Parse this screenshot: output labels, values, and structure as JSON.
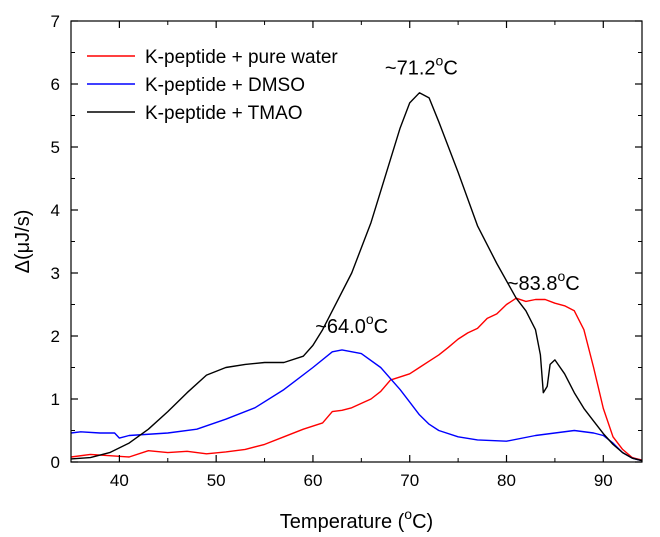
{
  "chart_data": {
    "type": "line",
    "xlabel": "Temperature (°C)",
    "xlabel_parts": {
      "pre": "Temperature (",
      "sup": "o",
      "post": "C)"
    },
    "ylabel": "Δ(μJ/s)",
    "xlim": [
      35,
      94
    ],
    "ylim": [
      0,
      7
    ],
    "xticks": [
      40,
      50,
      60,
      70,
      80,
      90
    ],
    "yticks": [
      0,
      1,
      2,
      3,
      4,
      5,
      6,
      7
    ],
    "grid": false,
    "legend_position": "top-left",
    "series": [
      {
        "name": "K-peptide + pure water",
        "color": "#ff0000",
        "points": [
          [
            35,
            0.08
          ],
          [
            37,
            0.12
          ],
          [
            39,
            0.1
          ],
          [
            41,
            0.08
          ],
          [
            43,
            0.18
          ],
          [
            45,
            0.15
          ],
          [
            47,
            0.17
          ],
          [
            49,
            0.13
          ],
          [
            51,
            0.16
          ],
          [
            53,
            0.2
          ],
          [
            55,
            0.28
          ],
          [
            57,
            0.4
          ],
          [
            59,
            0.52
          ],
          [
            61,
            0.62
          ],
          [
            62,
            0.8
          ],
          [
            63,
            0.82
          ],
          [
            64,
            0.86
          ],
          [
            65,
            0.93
          ],
          [
            66,
            1.0
          ],
          [
            67,
            1.12
          ],
          [
            68,
            1.3
          ],
          [
            69,
            1.35
          ],
          [
            70,
            1.4
          ],
          [
            71,
            1.5
          ],
          [
            72,
            1.6
          ],
          [
            73,
            1.7
          ],
          [
            74,
            1.82
          ],
          [
            75,
            1.95
          ],
          [
            76,
            2.05
          ],
          [
            77,
            2.12
          ],
          [
            78,
            2.28
          ],
          [
            79,
            2.35
          ],
          [
            80,
            2.5
          ],
          [
            81,
            2.6
          ],
          [
            82,
            2.55
          ],
          [
            83,
            2.58
          ],
          [
            84,
            2.58
          ],
          [
            85,
            2.52
          ],
          [
            86,
            2.48
          ],
          [
            87,
            2.4
          ],
          [
            88,
            2.1
          ],
          [
            89,
            1.5
          ],
          [
            90,
            0.85
          ],
          [
            91,
            0.4
          ],
          [
            92,
            0.2
          ],
          [
            93,
            0.07
          ],
          [
            94,
            0.03
          ]
        ]
      },
      {
        "name": "K-peptide + DMSO",
        "color": "#0000ff",
        "points": [
          [
            35,
            0.46
          ],
          [
            36,
            0.48
          ],
          [
            38,
            0.46
          ],
          [
            39.5,
            0.46
          ],
          [
            40,
            0.38
          ],
          [
            41,
            0.42
          ],
          [
            45,
            0.46
          ],
          [
            48,
            0.52
          ],
          [
            51,
            0.68
          ],
          [
            54,
            0.86
          ],
          [
            57,
            1.15
          ],
          [
            60,
            1.5
          ],
          [
            62,
            1.75
          ],
          [
            63,
            1.78
          ],
          [
            65,
            1.72
          ],
          [
            67,
            1.5
          ],
          [
            69,
            1.15
          ],
          [
            70,
            0.95
          ],
          [
            71,
            0.75
          ],
          [
            72,
            0.6
          ],
          [
            73,
            0.5
          ],
          [
            75,
            0.4
          ],
          [
            77,
            0.35
          ],
          [
            80,
            0.33
          ],
          [
            83,
            0.42
          ],
          [
            85,
            0.46
          ],
          [
            87,
            0.5
          ],
          [
            89,
            0.46
          ],
          [
            90,
            0.42
          ],
          [
            91,
            0.3
          ],
          [
            92,
            0.15
          ],
          [
            93,
            0.06
          ],
          [
            94,
            0.02
          ]
        ]
      },
      {
        "name": "K-peptide + TMAO",
        "color": "#000000",
        "points": [
          [
            35,
            0.05
          ],
          [
            37,
            0.07
          ],
          [
            39,
            0.15
          ],
          [
            41,
            0.3
          ],
          [
            43,
            0.52
          ],
          [
            45,
            0.8
          ],
          [
            47,
            1.1
          ],
          [
            49,
            1.38
          ],
          [
            51,
            1.5
          ],
          [
            53,
            1.55
          ],
          [
            55,
            1.58
          ],
          [
            57,
            1.58
          ],
          [
            59,
            1.68
          ],
          [
            60,
            1.85
          ],
          [
            61,
            2.1
          ],
          [
            62,
            2.4
          ],
          [
            64,
            3.0
          ],
          [
            66,
            3.8
          ],
          [
            68,
            4.8
          ],
          [
            69,
            5.3
          ],
          [
            70,
            5.7
          ],
          [
            71,
            5.86
          ],
          [
            72,
            5.78
          ],
          [
            73,
            5.4
          ],
          [
            75,
            4.6
          ],
          [
            77,
            3.75
          ],
          [
            79,
            3.15
          ],
          [
            81,
            2.6
          ],
          [
            82,
            2.4
          ],
          [
            83,
            2.1
          ],
          [
            83.5,
            1.7
          ],
          [
            83.8,
            1.1
          ],
          [
            84.2,
            1.2
          ],
          [
            84.5,
            1.55
          ],
          [
            85,
            1.62
          ],
          [
            86,
            1.4
          ],
          [
            87,
            1.1
          ],
          [
            88,
            0.85
          ],
          [
            89,
            0.65
          ],
          [
            90,
            0.45
          ],
          [
            91,
            0.28
          ],
          [
            92,
            0.15
          ],
          [
            93,
            0.06
          ],
          [
            94,
            0.02
          ]
        ]
      }
    ],
    "annotations": [
      {
        "pre": "~71.2",
        "sup": "o",
        "post": "C",
        "x": 71.2,
        "y": 6.15
      },
      {
        "pre": "~64.0",
        "sup": "o",
        "post": "C",
        "x": 64.0,
        "y": 2.05
      },
      {
        "pre": "~83.8",
        "sup": "o",
        "post": "C",
        "x": 83.8,
        "y": 2.73
      }
    ]
  }
}
